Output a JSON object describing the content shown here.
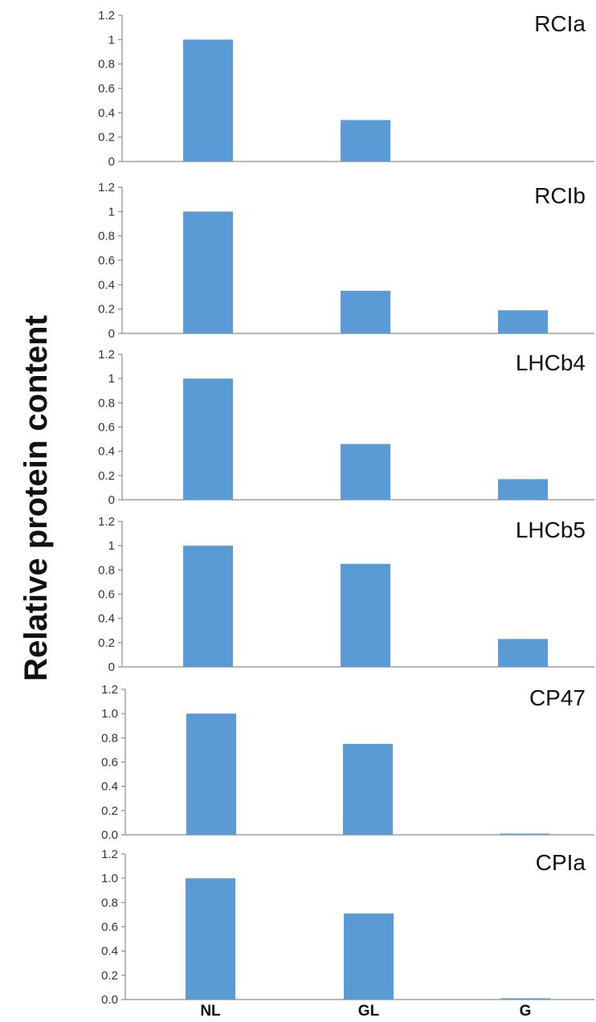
{
  "figure": {
    "ylabel": "Relative protein content",
    "categories": [
      "NL",
      "GL",
      "G"
    ],
    "bar_color": "#5b9bd5"
  },
  "chart_data": [
    {
      "type": "bar",
      "title": "RCIa",
      "categories": [
        "NL",
        "GL",
        "G"
      ],
      "values": [
        1.0,
        0.34,
        0.0
      ],
      "ylim": [
        0,
        1.2
      ],
      "yticks": [
        "0",
        "0.2",
        "0.4",
        "0.6",
        "0.8",
        "1",
        "1.2"
      ],
      "grid": false
    },
    {
      "type": "bar",
      "title": "RCIb",
      "categories": [
        "NL",
        "GL",
        "G"
      ],
      "values": [
        1.0,
        0.35,
        0.19
      ],
      "ylim": [
        0,
        1.2
      ],
      "yticks": [
        "0",
        "0.2",
        "0.4",
        "0.6",
        "0.8",
        "1",
        "1.2"
      ],
      "grid": false
    },
    {
      "type": "bar",
      "title": "LHCb4",
      "categories": [
        "NL",
        "GL",
        "G"
      ],
      "values": [
        1.0,
        0.46,
        0.17
      ],
      "ylim": [
        0,
        1.2
      ],
      "yticks": [
        "0",
        "0.2",
        "0.4",
        "0.6",
        "0.8",
        "1",
        "1.2"
      ],
      "grid": false
    },
    {
      "type": "bar",
      "title": "LHCb5",
      "categories": [
        "NL",
        "GL",
        "G"
      ],
      "values": [
        1.0,
        0.85,
        0.23
      ],
      "ylim": [
        0,
        1.2
      ],
      "yticks": [
        "0",
        "0.2",
        "0.4",
        "0.6",
        "0.8",
        "1",
        "1.2"
      ],
      "grid": false
    },
    {
      "type": "bar",
      "title": "CP47",
      "categories": [
        "NL",
        "GL",
        "G"
      ],
      "values": [
        1.0,
        0.75,
        0.01
      ],
      "ylim": [
        0,
        1.2
      ],
      "yticks": [
        "0.0",
        "0.2",
        "0.4",
        "0.6",
        "0.8",
        "1.0",
        "1.2"
      ],
      "grid": false
    },
    {
      "type": "bar",
      "title": "CPIa",
      "categories": [
        "NL",
        "GL",
        "G"
      ],
      "values": [
        1.0,
        0.71,
        0.01
      ],
      "ylim": [
        0,
        1.2
      ],
      "yticks": [
        "0.0",
        "0.2",
        "0.4",
        "0.6",
        "0.8",
        "1.0",
        "1.2"
      ],
      "grid": false
    }
  ]
}
